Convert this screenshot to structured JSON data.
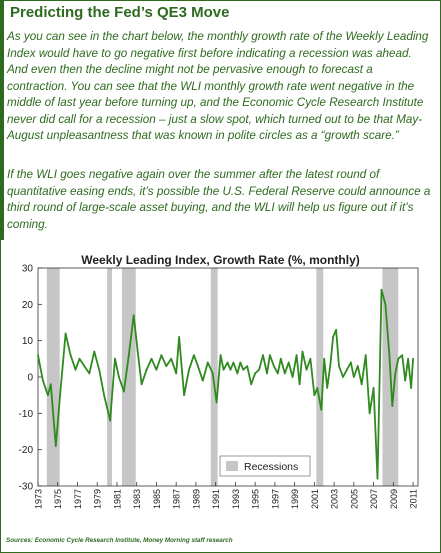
{
  "article": {
    "title": "Predicting the Fed’s QE3 Move",
    "paragraph1": "As you can see in the chart below, the monthly growth rate of the Weekly Leading Index would have to go negative first before indicating a recession was ahead. And even then the decline might not be pervasive enough to forecast a contraction. You can see that the WLI monthly growth rate went negative in the middle of last year before turning up, and the Economic Cycle Research Institute never did call for a recession – just a slow spot, which turned out to be that May-August unpleasantness that was known in polite circles as a “growth scare.”",
    "paragraph2": "If the WLI goes negative again over the summer after the latest round of quantitative easing ends, it’s possible the U.S. Federal Reserve could announce a third round of large-scale asset buying, and the WLI will help us figure out if it’s coming.",
    "source": "Sources: Economic Cycle Research Institute, Money Morning staff research"
  },
  "colors": {
    "accent": "#2e6b1f",
    "line": "#2f8a1f",
    "recession": "#c6c6c6"
  },
  "chart_data": {
    "type": "line",
    "title": "Weekly Leading Index, Growth Rate (%, monthly)",
    "xlabel": "",
    "ylabel": "",
    "ylim": [
      -30,
      30
    ],
    "xlim": [
      1973,
      2011.5
    ],
    "y_ticks": [
      30,
      20,
      10,
      0,
      -10,
      -20,
      -30
    ],
    "x_ticks": [
      1973,
      1975,
      1977,
      1979,
      1981,
      1983,
      1985,
      1987,
      1989,
      1991,
      1993,
      1995,
      1997,
      1999,
      2001,
      2003,
      2005,
      2007,
      2009,
      2011
    ],
    "grid": false,
    "legend": {
      "position": "bottom-center",
      "label": "Recessions"
    },
    "recessions": [
      {
        "start": 1973.9,
        "end": 1975.2
      },
      {
        "start": 1980.0,
        "end": 1980.5
      },
      {
        "start": 1981.5,
        "end": 1982.9
      },
      {
        "start": 1990.5,
        "end": 1991.2
      },
      {
        "start": 2001.2,
        "end": 2001.9
      },
      {
        "start": 2007.9,
        "end": 2009.5
      }
    ],
    "series": [
      {
        "x": [
          1973.0,
          1973.5,
          1974.0,
          1974.3,
          1974.8,
          1975.3,
          1975.8,
          1976.3,
          1976.8,
          1977.2,
          1977.7,
          1978.2,
          1978.7,
          1979.2,
          1979.7,
          1980.3,
          1980.8,
          1981.2,
          1981.7,
          1982.2,
          1982.7,
          1983.1,
          1983.5,
          1984.0,
          1984.5,
          1985.0,
          1985.5,
          1986.0,
          1986.5,
          1987.0,
          1987.3,
          1987.8,
          1988.3,
          1988.8,
          1989.2,
          1989.7,
          1990.2,
          1990.7,
          1991.1,
          1991.5,
          1991.8,
          1992.2,
          1992.5,
          1992.8,
          1993.2,
          1993.5,
          1993.8,
          1994.2,
          1994.6,
          1995.0,
          1995.4,
          1995.8,
          1996.2,
          1996.5,
          1996.9,
          1997.3,
          1997.6,
          1998.0,
          1998.4,
          1998.8,
          1999.2,
          1999.5,
          1999.8,
          2000.2,
          2000.6,
          2001.0,
          2001.3,
          2001.7,
          2002.0,
          2002.3,
          2002.6,
          2002.9,
          2003.2,
          2003.5,
          2003.9,
          2004.3,
          2004.7,
          2005.0,
          2005.4,
          2005.8,
          2006.2,
          2006.6,
          2007.0,
          2007.4,
          2007.8,
          2008.2,
          2008.6,
          2008.9,
          2009.2,
          2009.5,
          2009.9,
          2010.2,
          2010.5,
          2010.8,
          2011.0
        ],
        "values": [
          6,
          -1,
          -5,
          -2,
          -19,
          -3,
          12,
          6,
          2,
          5,
          3,
          1,
          7,
          2,
          -5,
          -12,
          5,
          0,
          -4,
          6,
          17,
          7,
          -2,
          2,
          5,
          2,
          6,
          3,
          5,
          1,
          11,
          -5,
          2,
          6,
          3,
          -1,
          4,
          1,
          -7,
          6,
          2,
          4,
          2,
          4,
          1,
          4,
          2,
          3,
          -2,
          1,
          2,
          6,
          1,
          6,
          3,
          1,
          5,
          1,
          4,
          0,
          6,
          -2,
          7,
          2,
          5,
          -5,
          -3,
          -9,
          5,
          -3,
          3,
          11,
          13,
          3,
          0,
          2,
          4,
          0,
          3,
          -2,
          6,
          -10,
          -3,
          -28,
          24,
          20,
          6,
          -8,
          1,
          5,
          6,
          -1,
          5,
          -3,
          5
        ]
      }
    ]
  }
}
